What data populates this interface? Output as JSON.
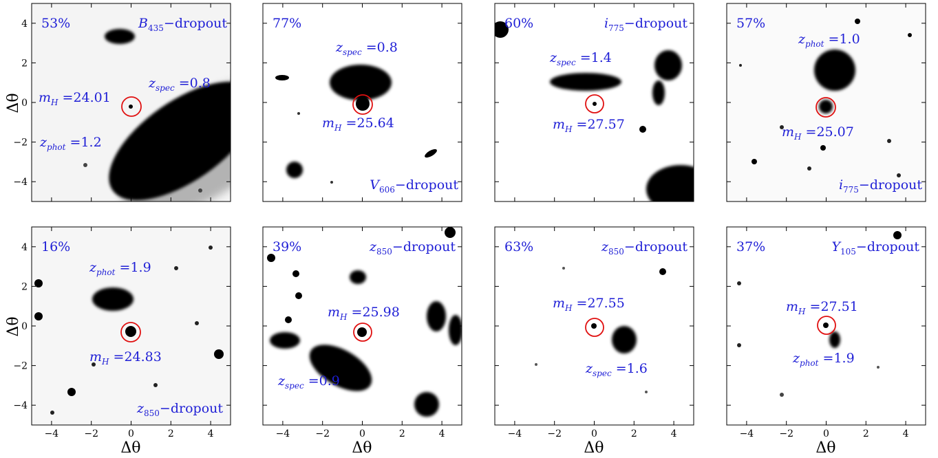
{
  "figure": {
    "axis_label": "Δθ",
    "x_ticks": [
      "−4",
      "−2",
      "0",
      "2",
      "4"
    ],
    "y_ticks": [
      "4",
      "2",
      "0",
      "−2",
      "−4"
    ],
    "panels": [
      {
        "percent": "53%",
        "dropout": {
          "main": "B",
          "sub": "435",
          "rest": "−dropout"
        },
        "labels": [
          {
            "v": "m",
            "s": "H",
            "eq": " =24.01"
          },
          {
            "v": "z",
            "s": "spec",
            "eq": " =0.8"
          },
          {
            "v": "z",
            "s": "phot",
            "eq": " =1.2"
          }
        ]
      },
      {
        "percent": "77%",
        "dropout": {
          "main": "V",
          "sub": "606",
          "rest": "−dropout"
        },
        "labels": [
          {
            "v": "z",
            "s": "spec",
            "eq": " =0.8"
          },
          {
            "v": "m",
            "s": "H",
            "eq": " =25.64"
          }
        ]
      },
      {
        "percent": "60%",
        "dropout": {
          "main": "i",
          "sub": "775",
          "rest": "−dropout"
        },
        "labels": [
          {
            "v": "z",
            "s": "spec",
            "eq": " =1.4"
          },
          {
            "v": "m",
            "s": "H",
            "eq": " =27.57"
          }
        ]
      },
      {
        "percent": "57%",
        "dropout": {
          "main": "i",
          "sub": "775",
          "rest": "−dropout"
        },
        "labels": [
          {
            "v": "z",
            "s": "phot",
            "eq": " =1.0"
          },
          {
            "v": "m",
            "s": "H",
            "eq": " =25.07"
          }
        ]
      },
      {
        "percent": "16%",
        "dropout": {
          "main": "z",
          "sub": "850",
          "rest": "−dropout"
        },
        "labels": [
          {
            "v": "z",
            "s": "phot",
            "eq": " =1.9"
          },
          {
            "v": "m",
            "s": "H",
            "eq": " =24.83"
          }
        ]
      },
      {
        "percent": "39%",
        "dropout": {
          "main": "z",
          "sub": "850",
          "rest": "−dropout"
        },
        "labels": [
          {
            "v": "m",
            "s": "H",
            "eq": " =25.98"
          },
          {
            "v": "z",
            "s": "spec",
            "eq": " =0.9"
          }
        ]
      },
      {
        "percent": "63%",
        "dropout": {
          "main": "z",
          "sub": "850",
          "rest": "−dropout"
        },
        "labels": [
          {
            "v": "m",
            "s": "H",
            "eq": " =27.55"
          },
          {
            "v": "z",
            "s": "spec",
            "eq": " =1.6"
          }
        ]
      },
      {
        "percent": "37%",
        "dropout": {
          "main": "Y",
          "sub": "105",
          "rest": "−dropout"
        },
        "labels": [
          {
            "v": "m",
            "s": "H",
            "eq": " =27.51"
          },
          {
            "v": "z",
            "s": "phot",
            "eq": " =1.9"
          }
        ]
      }
    ]
  },
  "colors": {
    "annotation": "#1f1fd6",
    "circle": "#e01010",
    "source": "#000000"
  }
}
